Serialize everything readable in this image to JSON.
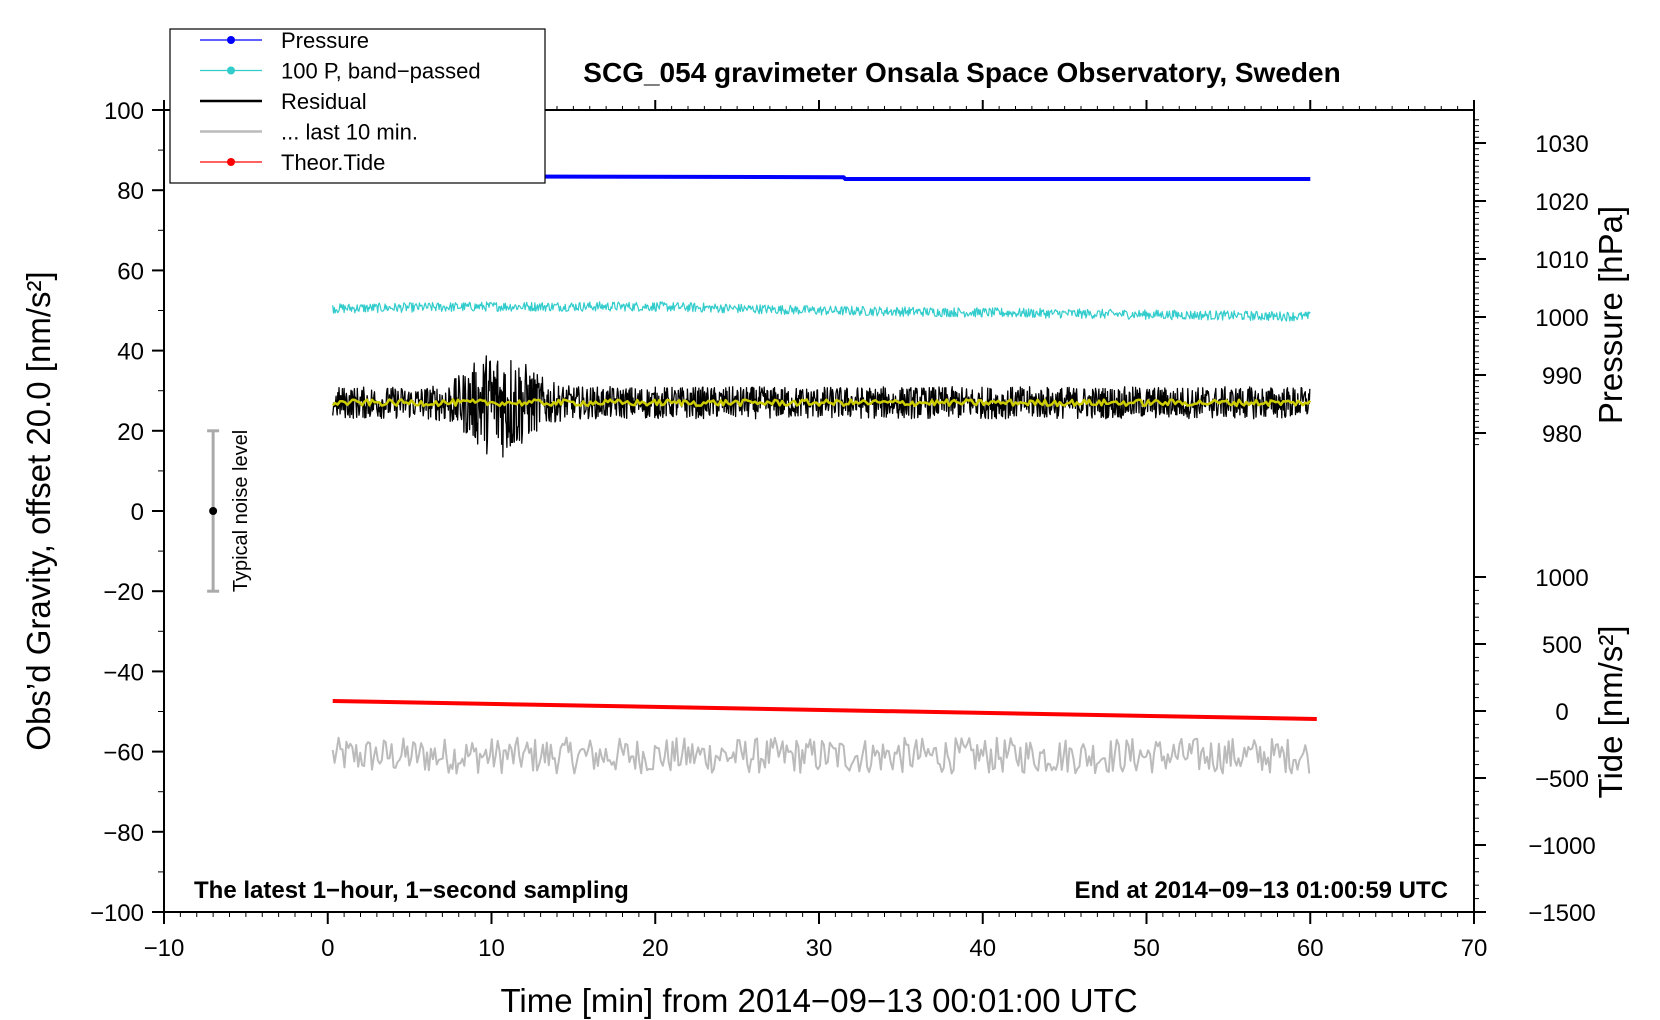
{
  "chart_data": {
    "type": "line",
    "title": "SCG_054 gravimeter Onsala Space Observatory, Sweden",
    "xlabel": "Time [min] from 2014−09−13 00:01:00 UTC",
    "ylabel_left": "Obs’d Gravity, offset 20.0 [nm/s²]",
    "ylabel_right_pressure": "Pressure [hPa]",
    "ylabel_right_tide": "Tide [nm/s²]",
    "xlim": [
      -10,
      70
    ],
    "ylim": [
      -100,
      100
    ],
    "pressure_lim": [
      980,
      1030
    ],
    "tide_lim": [
      -1500,
      1000
    ],
    "grid": false,
    "legend_position": "top-left",
    "x_ticks": [
      "−10",
      "0",
      "10",
      "20",
      "30",
      "40",
      "50",
      "60",
      "70"
    ],
    "y_ticks": [
      "100",
      "80",
      "60",
      "40",
      "20",
      "0",
      "−20",
      "−40",
      "−60",
      "−80",
      "−100"
    ],
    "pressure_ticks": [
      "1030",
      "1020",
      "1010",
      "1000",
      "990",
      "980"
    ],
    "tide_ticks": [
      "1000",
      "500",
      "0",
      "−500",
      "−1000",
      "−1500"
    ],
    "annotations": {
      "bottom_left": "The latest 1−hour, 1−second sampling",
      "bottom_right": "End at 2014−09−13 01:00:59 UTC",
      "noise_label": "Typical noise level"
    },
    "noise_bar": {
      "x": -7,
      "center": 0,
      "low": -20,
      "high": 20
    },
    "series": [
      {
        "name": "Pressure",
        "axis": "pressure",
        "color": "#0000ff",
        "x": [
          0.3,
          31.5,
          31.6,
          60
        ],
        "y": [
          1024.3,
          1024.1,
          1023.8,
          1023.8
        ]
      },
      {
        "name": "100 P, band−passed",
        "axis": "gravity",
        "color": "#33cccc",
        "x": [
          0.3,
          10,
          20,
          30,
          40,
          50,
          60
        ],
        "y": [
          50.5,
          51,
          51,
          50,
          49.5,
          49,
          48.5
        ],
        "noise_amplitude": 1.2
      },
      {
        "name": "Residual",
        "axis": "gravity",
        "color": "#000000",
        "x": [
          0.3,
          60
        ],
        "y": [
          27,
          27
        ],
        "noise_amplitude": 4,
        "burst_center": 10.5,
        "burst_amplitude": 10
      },
      {
        "name": "... last 10 min.",
        "axis": "gravity",
        "color": "#bbbbbb",
        "x": [
          0.3,
          60
        ],
        "y": [
          -61,
          -61
        ],
        "noise_amplitude": 4.5
      },
      {
        "name": "Theor.Tide",
        "axis": "tide",
        "color": "#ff0000",
        "x": [
          0.3,
          60.4
        ],
        "y": [
          75,
          -60
        ]
      }
    ],
    "smoothed_residual": {
      "color": "#cccc00",
      "x": [
        0.3,
        60
      ],
      "y": [
        27,
        27
      ],
      "noise_amplitude": 0.8
    }
  }
}
